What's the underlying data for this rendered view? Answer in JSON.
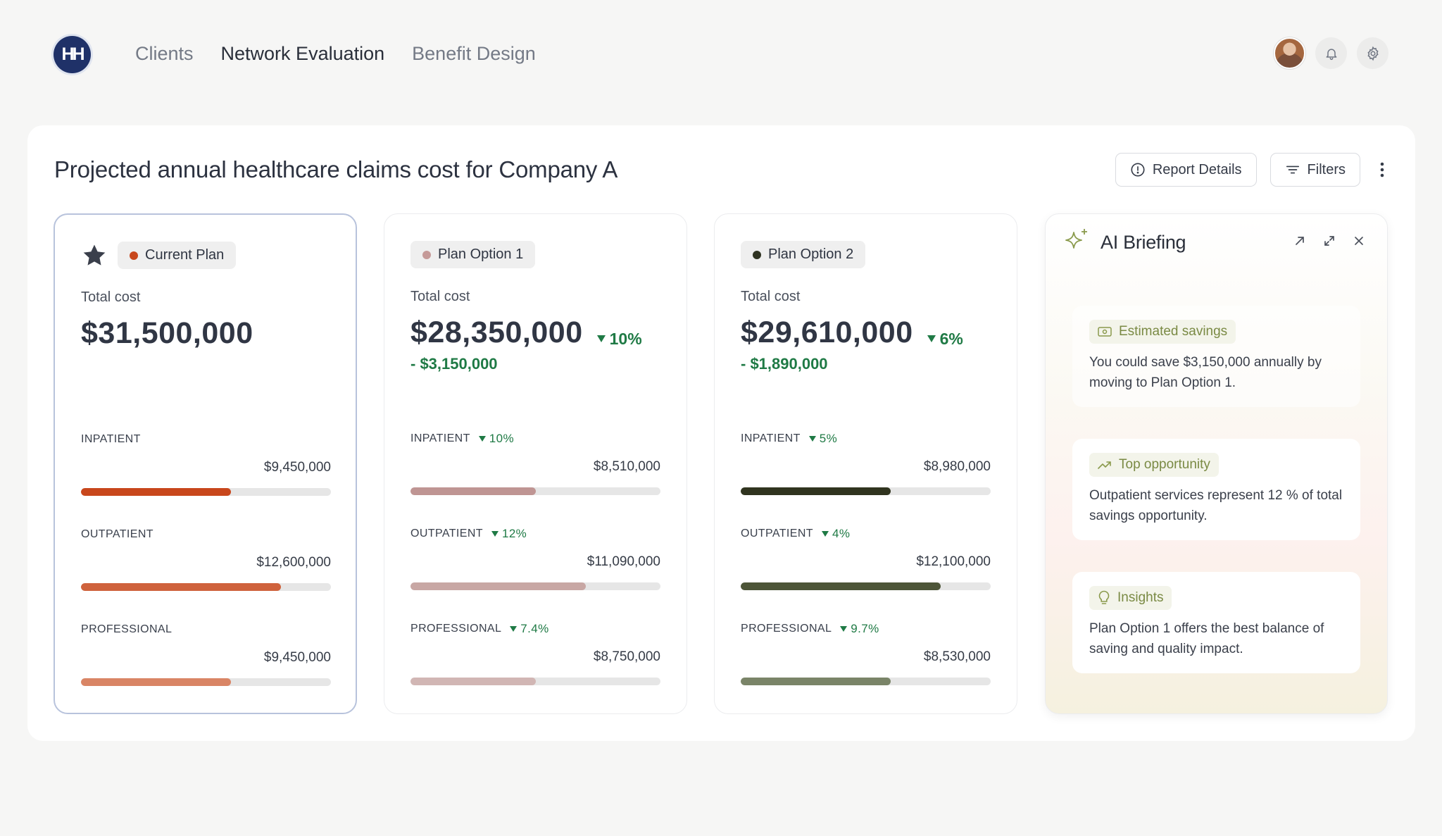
{
  "app": {
    "logo_text": "HH",
    "nav": [
      {
        "label": "Clients",
        "active": false
      },
      {
        "label": "Network Evaluation",
        "active": true
      },
      {
        "label": "Benefit Design",
        "active": false
      }
    ],
    "icons": [
      "avatar",
      "bell-icon",
      "gear-icon"
    ]
  },
  "header": {
    "title": "Projected annual healthcare claims cost for Company A",
    "report_details_label": "Report Details",
    "filters_label": "Filters"
  },
  "plans": [
    {
      "name": "Current Plan",
      "starred": true,
      "dot_color": "#c8471c",
      "total_label": "Total cost",
      "total": "$31,500,000",
      "delta": "",
      "savings": "",
      "categories": [
        {
          "label": "INPATIENT",
          "delta": "",
          "amount": "$9,450,000",
          "fill": 0.6,
          "color": "#c8471c"
        },
        {
          "label": "OUTPATIENT",
          "delta": "",
          "amount": "$12,600,000",
          "fill": 0.8,
          "color": "#cf623c"
        },
        {
          "label": "PROFESSIONAL",
          "delta": "",
          "amount": "$9,450,000",
          "fill": 0.6,
          "color": "#d98565"
        }
      ]
    },
    {
      "name": "Plan Option 1",
      "starred": false,
      "dot_color": "#c59a98",
      "total_label": "Total cost",
      "total": "$28,350,000",
      "delta": "10%",
      "savings": "- $3,150,000",
      "categories": [
        {
          "label": "INPATIENT",
          "delta": "10%",
          "amount": "$8,510,000",
          "fill": 0.5,
          "color": "#bf9593"
        },
        {
          "label": "OUTPATIENT",
          "delta": "12%",
          "amount": "$11,090,000",
          "fill": 0.7,
          "color": "#c8a7a4"
        },
        {
          "label": "PROFESSIONAL",
          "delta": "7.4%",
          "amount": "$8,750,000",
          "fill": 0.5,
          "color": "#d1b6b4"
        }
      ]
    },
    {
      "name": "Plan Option 2",
      "starred": false,
      "dot_color": "#2f3322",
      "total_label": "Total cost",
      "total": "$29,610,000",
      "delta": "6%",
      "savings": "- $1,890,000",
      "categories": [
        {
          "label": "INPATIENT",
          "delta": "5%",
          "amount": "$8,980,000",
          "fill": 0.6,
          "color": "#30341f"
        },
        {
          "label": "OUTPATIENT",
          "delta": "4%",
          "amount": "$12,100,000",
          "fill": 0.8,
          "color": "#4d5538"
        },
        {
          "label": "PROFESSIONAL",
          "delta": "9.7%",
          "amount": "$8,530,000",
          "fill": 0.6,
          "color": "#7a8468"
        }
      ]
    }
  ],
  "ai_briefing": {
    "title": "AI Briefing",
    "cards": [
      {
        "tag": "Estimated savings",
        "icon": "money-icon",
        "text": "You could save  $3,150,000  annually by moving to Plan Option 1."
      },
      {
        "tag": "Top opportunity",
        "icon": "trend-up-icon",
        "text": "Outpatient services represent  12 % of total savings opportunity."
      },
      {
        "tag": "Insights",
        "icon": "lightbulb-icon",
        "text": "Plan Option 1 offers the best balance of saving and quality impact."
      }
    ]
  },
  "colors": {
    "accent_green": "#1f7a45",
    "logo_navy": "#1f3168",
    "current_plan_border": "#b8c3dc"
  }
}
